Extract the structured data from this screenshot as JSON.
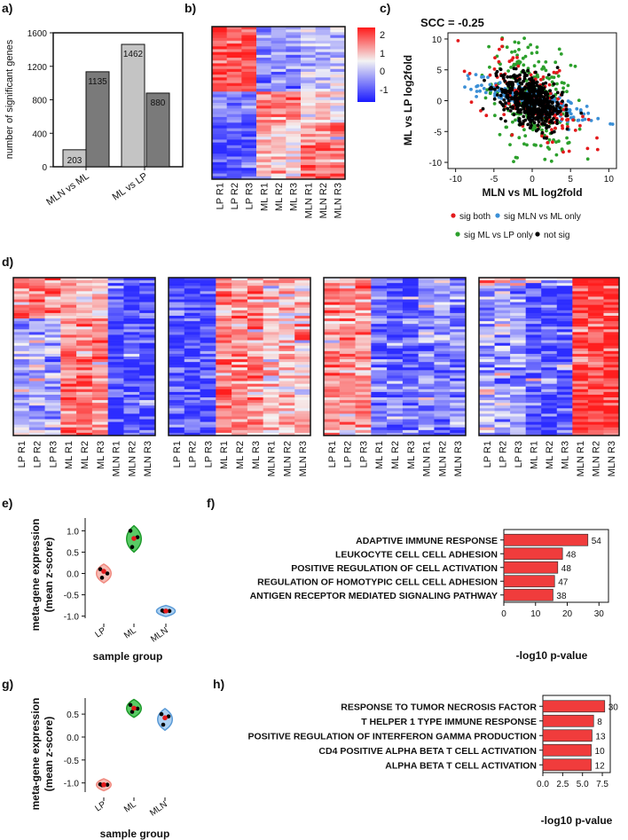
{
  "panel_labels": {
    "a": "a)",
    "b": "b)",
    "c": "c)",
    "d": "d)",
    "e": "e)",
    "f": "f)",
    "g": "g)",
    "h": "h)"
  },
  "colors": {
    "bar_light": "#c4c4c4",
    "bar_dark": "#7a7a7a",
    "heat_high": "#ff1a1a",
    "heat_mid": "#f2f2f2",
    "heat_low": "#1a1aff",
    "go_bar": "#f03c3c",
    "sig_both": "#e31a1c",
    "sig_mln": "#3b8fd6",
    "sig_ml": "#2ca02c",
    "not_sig": "#000000",
    "violet_lp": "#f5b0a8",
    "violet_ml": "#3cc24a",
    "violet_mln": "#9ec8ee"
  },
  "chart_data": [
    {
      "id": "a",
      "type": "bar",
      "title": "",
      "xlabel": "",
      "ylabel": "number of significant genes",
      "ylim": [
        0,
        1600
      ],
      "yticks": [
        "0",
        "400",
        "800",
        "1200",
        "1600"
      ],
      "groups": [
        "MLN vs ML",
        "ML vs LP"
      ],
      "series": [
        {
          "name": "light",
          "values": [
            203,
            1462
          ]
        },
        {
          "name": "dark",
          "values": [
            1135,
            880
          ]
        }
      ],
      "value_labels": [
        "203",
        "1135",
        "1462",
        "880"
      ]
    },
    {
      "id": "b",
      "type": "heatmap",
      "columns": [
        "LP R1",
        "LP R2",
        "LP R3",
        "ML R1",
        "ML R2",
        "ML R3",
        "MLN R1",
        "MLN R2",
        "MLN R3"
      ],
      "colorbar": {
        "range": [
          -1.5,
          2.5
        ],
        "ticks": [
          "2",
          "1",
          "0",
          "-1"
        ]
      }
    },
    {
      "id": "c",
      "type": "scatter",
      "title": "SCC = -0.25",
      "xlabel": "MLN vs ML log2fold",
      "ylabel": "ML vs LP log2fold",
      "xlim": [
        -11,
        11
      ],
      "ylim": [
        -11,
        11
      ],
      "xticks": [
        "-10",
        "-5",
        "0",
        "5",
        "10"
      ],
      "yticks": [
        "10",
        "5",
        "0",
        "-5",
        "-10"
      ],
      "legend": [
        "sig both",
        "sig MLN vs ML only",
        "sig ML vs LP only",
        "not sig"
      ]
    },
    {
      "id": "d",
      "type": "heatmap",
      "columns": [
        "LP R1",
        "LP R2",
        "LP R3",
        "ML R1",
        "ML R2",
        "ML R3",
        "MLN R1",
        "MLN R2",
        "MLN R3"
      ],
      "clusters": 4
    },
    {
      "id": "e",
      "type": "violin",
      "xlabel": "sample group",
      "ylabel": "meta-gene expression (mean z-score)",
      "ylabel_lines": [
        "meta-gene expression",
        "(mean z-score)"
      ],
      "ylim": [
        -1.05,
        1.3
      ],
      "yticks": [
        "1.0",
        "0.5",
        "0.0",
        "-0.5",
        "-1.0"
      ],
      "categories": [
        "LP",
        "ML",
        "MLN"
      ],
      "means": [
        0.05,
        0.82,
        -0.88
      ],
      "points": [
        [
          0.1,
          0.0,
          -0.1
        ],
        [
          1.0,
          0.85,
          0.62
        ],
        [
          -0.87,
          -0.88,
          -0.89
        ]
      ]
    },
    {
      "id": "f",
      "type": "bar",
      "orientation": "horizontal",
      "xlabel": "-log10 p-value",
      "xlim": [
        0,
        33
      ],
      "xticks": [
        "0",
        "10",
        "20",
        "30"
      ],
      "categories": [
        "ADAPTIVE IMMUNE RESPONSE",
        "LEUKOCYTE CELL CELL ADHESION",
        "POSITIVE REGULATION OF CELL ACTIVATION",
        "REGULATION OF HOMOTYPIC CELL CELL ADHESION",
        "ANTIGEN RECEPTOR MEDIATED SIGNALING PATHWAY"
      ],
      "values": [
        26.5,
        18.5,
        17,
        16,
        15.5
      ],
      "labels": [
        "54",
        "48",
        "48",
        "47",
        "38"
      ]
    },
    {
      "id": "g",
      "type": "violin",
      "xlabel": "sample group",
      "ylabel": "meta-gene expression (mean z-score)",
      "ylabel_lines": [
        "meta-gene expression",
        "(mean z-score)"
      ],
      "ylim": [
        -1.2,
        0.85
      ],
      "yticks": [
        "0.5",
        "0.0",
        "-0.5",
        "-1.0"
      ],
      "categories": [
        "LP",
        "ML",
        "MLN"
      ],
      "means": [
        -1.04,
        0.63,
        0.42
      ],
      "points": [
        [
          -1.03,
          -1.04,
          -1.05
        ],
        [
          0.7,
          0.62,
          0.55
        ],
        [
          0.5,
          0.45,
          0.27
        ]
      ]
    },
    {
      "id": "h",
      "type": "bar",
      "orientation": "horizontal",
      "xlabel": "-log10 p-value",
      "xlim": [
        0,
        8.5
      ],
      "xticks": [
        "0.0",
        "2.5",
        "5.0",
        "7.5"
      ],
      "categories": [
        "RESPONSE TO TUMOR NECROSIS FACTOR",
        "T HELPER 1 TYPE IMMUNE RESPONSE",
        "POSITIVE REGULATION OF INTERFERON GAMMA PRODUCTION",
        "CD4 POSITIVE ALPHA BETA T CELL ACTIVATION",
        "ALPHA BETA T CELL ACTIVATION"
      ],
      "values": [
        7.8,
        6.4,
        6.2,
        6.1,
        6.1
      ],
      "labels": [
        "30",
        "8",
        "13",
        "10",
        "12"
      ]
    }
  ]
}
